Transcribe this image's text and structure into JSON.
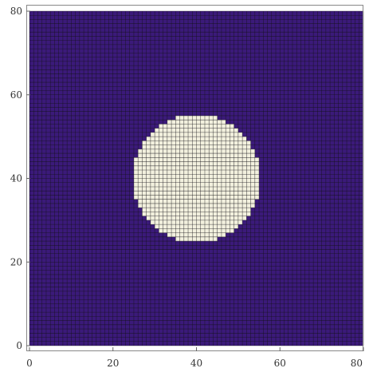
{
  "chart_data": {
    "type": "heatmap",
    "title": "",
    "xlabel": "",
    "ylabel": "",
    "grid_size": [
      80,
      80
    ],
    "xlim": [
      0,
      80
    ],
    "ylim": [
      0,
      80
    ],
    "x_ticks": [
      0,
      20,
      40,
      60,
      80
    ],
    "y_ticks": [
      0,
      20,
      40,
      60,
      80
    ],
    "x_tick_labels": [
      "0",
      "20",
      "40",
      "60",
      "80"
    ],
    "y_tick_labels": [
      "0",
      "20",
      "40",
      "60",
      "80"
    ],
    "grid": true,
    "background_value": 0,
    "regions": [
      {
        "shape": "circle",
        "center": [
          40,
          40
        ],
        "radius": 15.3,
        "value": 1
      }
    ],
    "colors": {
      "low": "#3b1a7a",
      "high": "#f2f0de",
      "cell_edge": "#111111"
    }
  }
}
